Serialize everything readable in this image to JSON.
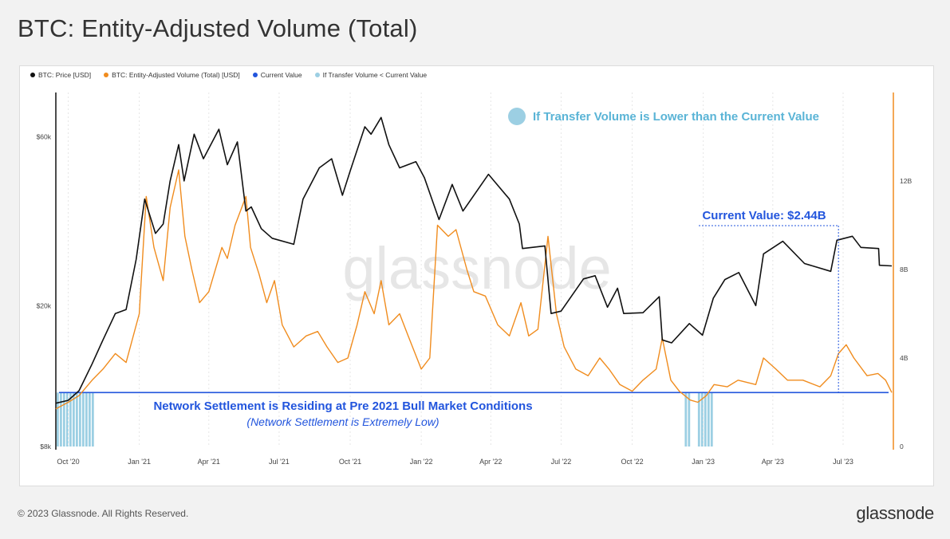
{
  "header": {
    "title": "BTC: Entity-Adjusted Volume (Total)"
  },
  "footer": {
    "copyright": "© 2023 Glassnode. All Rights Reserved.",
    "brand": "glassnode"
  },
  "colors": {
    "price": "#111111",
    "volume": "#f08c1e",
    "current": "#2255dd",
    "below": "#9ccfe3"
  },
  "legend": [
    {
      "label": "BTC: Price [USD]",
      "color": "#111111"
    },
    {
      "label": "BTC: Entity-Adjusted Volume (Total) [USD]",
      "color": "#f08c1e"
    },
    {
      "label": "Current Value",
      "color": "#2255dd"
    },
    {
      "label": "If Transfer Volume < Current Value",
      "color": "#9ccfe3"
    }
  ],
  "chart_data": {
    "type": "line",
    "watermark": "glassnode",
    "x_ticks": [
      "Oct '20",
      "Jan '21",
      "Apr '21",
      "Jul '21",
      "Oct '21",
      "Jan '22",
      "Apr '22",
      "Jul '22",
      "Oct '22",
      "Jan '23",
      "Apr '23",
      "Jul '23"
    ],
    "x_tick_dates": [
      "2020-10-01",
      "2021-01-01",
      "2021-04-01",
      "2021-07-01",
      "2021-10-01",
      "2022-01-01",
      "2022-04-01",
      "2022-07-01",
      "2022-10-01",
      "2023-01-01",
      "2023-04-01",
      "2023-07-01"
    ],
    "x_range": [
      "2020-09-15",
      "2023-09-02"
    ],
    "y_left": {
      "scale": "log",
      "ticks": [
        "$8k",
        "$20k",
        "$60k"
      ],
      "tick_values": [
        8000,
        20000,
        60000
      ],
      "range": [
        8000,
        80000
      ]
    },
    "y_right": {
      "scale": "linear",
      "ticks": [
        "0",
        "4B",
        "8B",
        "12B"
      ],
      "tick_values": [
        0,
        4,
        8,
        12
      ],
      "range": [
        0,
        16
      ]
    },
    "series": [
      {
        "name": "BTC: Price [USD]",
        "axis": "left",
        "points": [
          [
            "2020-09-15",
            10600
          ],
          [
            "2020-10-01",
            10800
          ],
          [
            "2020-10-15",
            11500
          ],
          [
            "2020-11-01",
            13700
          ],
          [
            "2020-11-15",
            16000
          ],
          [
            "2020-12-01",
            19000
          ],
          [
            "2020-12-15",
            19500
          ],
          [
            "2020-12-28",
            27000
          ],
          [
            "2021-01-08",
            40000
          ],
          [
            "2021-01-22",
            32000
          ],
          [
            "2021-02-01",
            34000
          ],
          [
            "2021-02-10",
            45000
          ],
          [
            "2021-02-21",
            57000
          ],
          [
            "2021-02-28",
            45000
          ],
          [
            "2021-03-13",
            61000
          ],
          [
            "2021-03-25",
            52000
          ],
          [
            "2021-04-14",
            63000
          ],
          [
            "2021-04-25",
            50000
          ],
          [
            "2021-05-08",
            58000
          ],
          [
            "2021-05-19",
            37000
          ],
          [
            "2021-05-26",
            38000
          ],
          [
            "2021-06-08",
            33000
          ],
          [
            "2021-06-22",
            31000
          ],
          [
            "2021-07-20",
            29800
          ],
          [
            "2021-08-01",
            40000
          ],
          [
            "2021-08-22",
            49000
          ],
          [
            "2021-09-07",
            52000
          ],
          [
            "2021-09-21",
            41000
          ],
          [
            "2021-10-01",
            48000
          ],
          [
            "2021-10-20",
            64000
          ],
          [
            "2021-10-28",
            61000
          ],
          [
            "2021-11-10",
            68000
          ],
          [
            "2021-11-20",
            57000
          ],
          [
            "2021-12-04",
            49000
          ],
          [
            "2021-12-25",
            51000
          ],
          [
            "2022-01-05",
            46000
          ],
          [
            "2022-01-24",
            35000
          ],
          [
            "2022-02-10",
            44000
          ],
          [
            "2022-02-24",
            37000
          ],
          [
            "2022-03-29",
            47000
          ],
          [
            "2022-04-25",
            40000
          ],
          [
            "2022-05-08",
            34000
          ],
          [
            "2022-05-12",
            29000
          ],
          [
            "2022-06-10",
            29500
          ],
          [
            "2022-06-18",
            19000
          ],
          [
            "2022-07-01",
            19300
          ],
          [
            "2022-07-30",
            23800
          ],
          [
            "2022-08-14",
            24300
          ],
          [
            "2022-08-30",
            19800
          ],
          [
            "2022-09-12",
            22400
          ],
          [
            "2022-09-20",
            19000
          ],
          [
            "2022-10-15",
            19100
          ],
          [
            "2022-11-05",
            21200
          ],
          [
            "2022-11-09",
            16000
          ],
          [
            "2022-11-21",
            15700
          ],
          [
            "2022-12-14",
            17800
          ],
          [
            "2022-12-31",
            16500
          ],
          [
            "2023-01-14",
            21000
          ],
          [
            "2023-01-29",
            23700
          ],
          [
            "2023-02-16",
            24800
          ],
          [
            "2023-03-10",
            20000
          ],
          [
            "2023-03-20",
            28000
          ],
          [
            "2023-04-14",
            30400
          ],
          [
            "2023-05-12",
            26300
          ],
          [
            "2023-06-15",
            25000
          ],
          [
            "2023-06-23",
            30600
          ],
          [
            "2023-07-13",
            31400
          ],
          [
            "2023-07-24",
            29200
          ],
          [
            "2023-08-16",
            29000
          ],
          [
            "2023-08-17",
            26000
          ],
          [
            "2023-09-02",
            25900
          ]
        ]
      },
      {
        "name": "BTC: Entity-Adjusted Volume (Total) [USD]",
        "axis": "right",
        "points": [
          [
            "2020-09-15",
            1.7
          ],
          [
            "2020-10-01",
            2.0
          ],
          [
            "2020-10-15",
            2.3
          ],
          [
            "2020-11-01",
            3.0
          ],
          [
            "2020-11-15",
            3.5
          ],
          [
            "2020-12-01",
            4.2
          ],
          [
            "2020-12-15",
            3.8
          ],
          [
            "2021-01-01",
            6.0
          ],
          [
            "2021-01-10",
            11.3
          ],
          [
            "2021-01-20",
            9.0
          ],
          [
            "2021-02-01",
            7.5
          ],
          [
            "2021-02-10",
            10.8
          ],
          [
            "2021-02-21",
            12.5
          ],
          [
            "2021-03-01",
            9.5
          ],
          [
            "2021-03-10",
            8.0
          ],
          [
            "2021-03-20",
            6.5
          ],
          [
            "2021-04-01",
            7.0
          ],
          [
            "2021-04-18",
            9.0
          ],
          [
            "2021-04-25",
            8.5
          ],
          [
            "2021-05-05",
            10.0
          ],
          [
            "2021-05-19",
            11.3
          ],
          [
            "2021-05-25",
            9.0
          ],
          [
            "2021-06-05",
            7.8
          ],
          [
            "2021-06-15",
            6.5
          ],
          [
            "2021-06-25",
            7.5
          ],
          [
            "2021-07-05",
            5.5
          ],
          [
            "2021-07-20",
            4.5
          ],
          [
            "2021-08-05",
            5.0
          ],
          [
            "2021-08-20",
            5.2
          ],
          [
            "2021-09-01",
            4.5
          ],
          [
            "2021-09-15",
            3.8
          ],
          [
            "2021-09-28",
            4.0
          ],
          [
            "2021-10-10",
            5.5
          ],
          [
            "2021-10-20",
            7.0
          ],
          [
            "2021-11-01",
            6.0
          ],
          [
            "2021-11-10",
            7.5
          ],
          [
            "2021-11-20",
            5.5
          ],
          [
            "2021-12-04",
            6.0
          ],
          [
            "2021-12-15",
            5.0
          ],
          [
            "2022-01-01",
            3.5
          ],
          [
            "2022-01-12",
            4.0
          ],
          [
            "2022-01-22",
            10.0
          ],
          [
            "2022-02-05",
            9.5
          ],
          [
            "2022-02-15",
            9.8
          ],
          [
            "2022-03-01",
            8.0
          ],
          [
            "2022-03-10",
            7.0
          ],
          [
            "2022-03-25",
            6.8
          ],
          [
            "2022-04-10",
            5.5
          ],
          [
            "2022-04-25",
            5.0
          ],
          [
            "2022-05-10",
            6.5
          ],
          [
            "2022-05-20",
            5.0
          ],
          [
            "2022-06-01",
            5.3
          ],
          [
            "2022-06-14",
            9.5
          ],
          [
            "2022-06-25",
            6.0
          ],
          [
            "2022-07-05",
            4.5
          ],
          [
            "2022-07-20",
            3.5
          ],
          [
            "2022-08-05",
            3.2
          ],
          [
            "2022-08-20",
            4.0
          ],
          [
            "2022-09-01",
            3.5
          ],
          [
            "2022-09-15",
            2.8
          ],
          [
            "2022-10-01",
            2.5
          ],
          [
            "2022-10-15",
            3.0
          ],
          [
            "2022-11-01",
            3.5
          ],
          [
            "2022-11-09",
            4.9
          ],
          [
            "2022-11-20",
            3.0
          ],
          [
            "2022-12-01",
            2.5
          ],
          [
            "2022-12-15",
            2.1
          ],
          [
            "2022-12-25",
            2.0
          ],
          [
            "2023-01-05",
            2.3
          ],
          [
            "2023-01-15",
            2.8
          ],
          [
            "2023-02-01",
            2.7
          ],
          [
            "2023-02-15",
            3.0
          ],
          [
            "2023-03-10",
            2.8
          ],
          [
            "2023-03-20",
            4.0
          ],
          [
            "2023-04-05",
            3.5
          ],
          [
            "2023-04-20",
            3.0
          ],
          [
            "2023-05-10",
            3.0
          ],
          [
            "2023-06-01",
            2.7
          ],
          [
            "2023-06-15",
            3.2
          ],
          [
            "2023-06-25",
            4.2
          ],
          [
            "2023-07-05",
            4.6
          ],
          [
            "2023-07-15",
            4.0
          ],
          [
            "2023-08-01",
            3.2
          ],
          [
            "2023-08-15",
            3.3
          ],
          [
            "2023-08-25",
            3.0
          ],
          [
            "2023-09-02",
            2.44
          ]
        ]
      }
    ],
    "current_value": 2.44,
    "below_current_periods": [
      [
        "2020-09-16",
        "2020-11-01"
      ],
      [
        "2022-12-08",
        "2022-12-16"
      ],
      [
        "2022-12-25",
        "2023-01-12"
      ]
    ],
    "annotations": {
      "current_label": "Current Value: $2.44B",
      "current_date": "2023-06-25",
      "legend_note": "If Transfer Volume is Lower than the Current Value",
      "settlement_title": "Network Settlement is Residing at Pre 2021 Bull Market Conditions",
      "settlement_sub": "(Network Settlement is Extremely Low)"
    }
  }
}
